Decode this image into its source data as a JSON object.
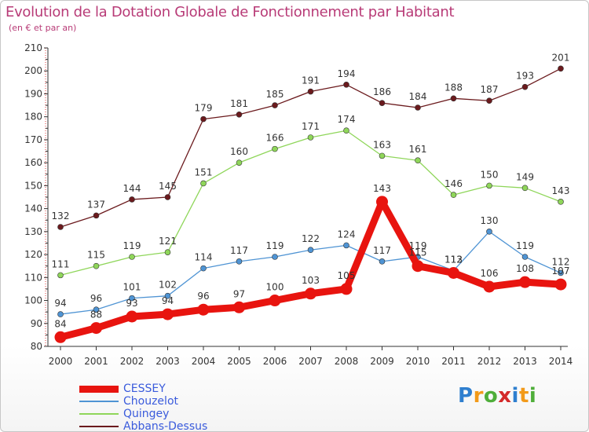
{
  "chart_data": {
    "type": "line",
    "title": "Evolution de la Dotation Globale de Fonctionnement par Habitant",
    "subtitle": "(en € et par an)",
    "x": [
      "2000",
      "2001",
      "2002",
      "2003",
      "2004",
      "2005",
      "2006",
      "2007",
      "2008",
      "2009",
      "2010",
      "2011",
      "2012",
      "2013",
      "2014"
    ],
    "ylim": [
      80,
      210
    ],
    "yticks": [
      80,
      90,
      100,
      110,
      120,
      130,
      140,
      150,
      160,
      170,
      180,
      190,
      200,
      210
    ],
    "grid": false,
    "series": [
      {
        "name": "CESSEY",
        "color": "#e8140f",
        "values": [
          84,
          88,
          93,
          94,
          96,
          97,
          100,
          103,
          105,
          143,
          115,
          112,
          106,
          108,
          107
        ]
      },
      {
        "name": "Chouzelot",
        "color": "#4f94d4",
        "values": [
          94,
          96,
          101,
          102,
          114,
          117,
          119,
          122,
          124,
          117,
          119,
          113,
          130,
          119,
          112
        ]
      },
      {
        "name": "Quingey",
        "color": "#8fd65a",
        "values": [
          111,
          115,
          119,
          121,
          151,
          160,
          166,
          171,
          174,
          163,
          161,
          146,
          150,
          149,
          143
        ]
      },
      {
        "name": "Abbans-Dessus",
        "color": "#6b1a1d",
        "values": [
          132,
          137,
          144,
          145,
          179,
          181,
          185,
          191,
          194,
          186,
          184,
          188,
          187,
          193,
          201
        ]
      }
    ]
  },
  "logo": {
    "text": "Proxiti",
    "letters": [
      {
        "ch": "P",
        "color": "#2f7fcf"
      },
      {
        "ch": "r",
        "color": "#f29a1a"
      },
      {
        "ch": "o",
        "color": "#4fae3a"
      },
      {
        "ch": "x",
        "color": "#d42a2a"
      },
      {
        "ch": "i",
        "color": "#2f7fcf"
      },
      {
        "ch": "t",
        "color": "#f29a1a"
      },
      {
        "ch": "i",
        "color": "#4fae3a"
      }
    ]
  }
}
